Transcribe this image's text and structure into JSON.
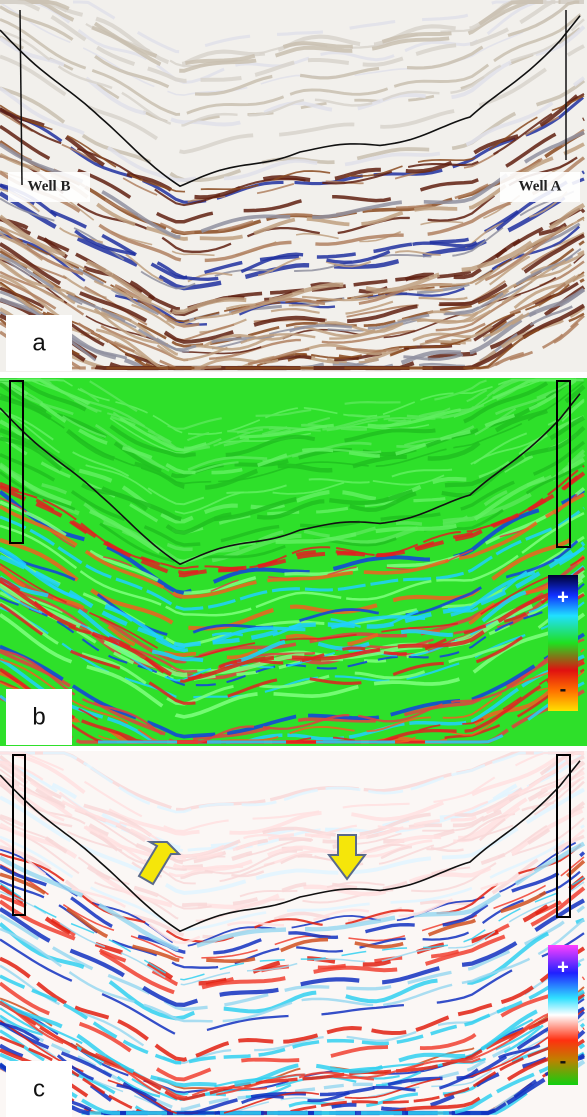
{
  "panels": [
    {
      "label": "a",
      "wells": [
        "Well B",
        "Well A"
      ]
    },
    {
      "label": "b",
      "colorbar": {
        "plus": "+",
        "minus": "-"
      }
    },
    {
      "label": "c",
      "colorbar": {
        "plus": "+",
        "minus": "-"
      }
    }
  ]
}
